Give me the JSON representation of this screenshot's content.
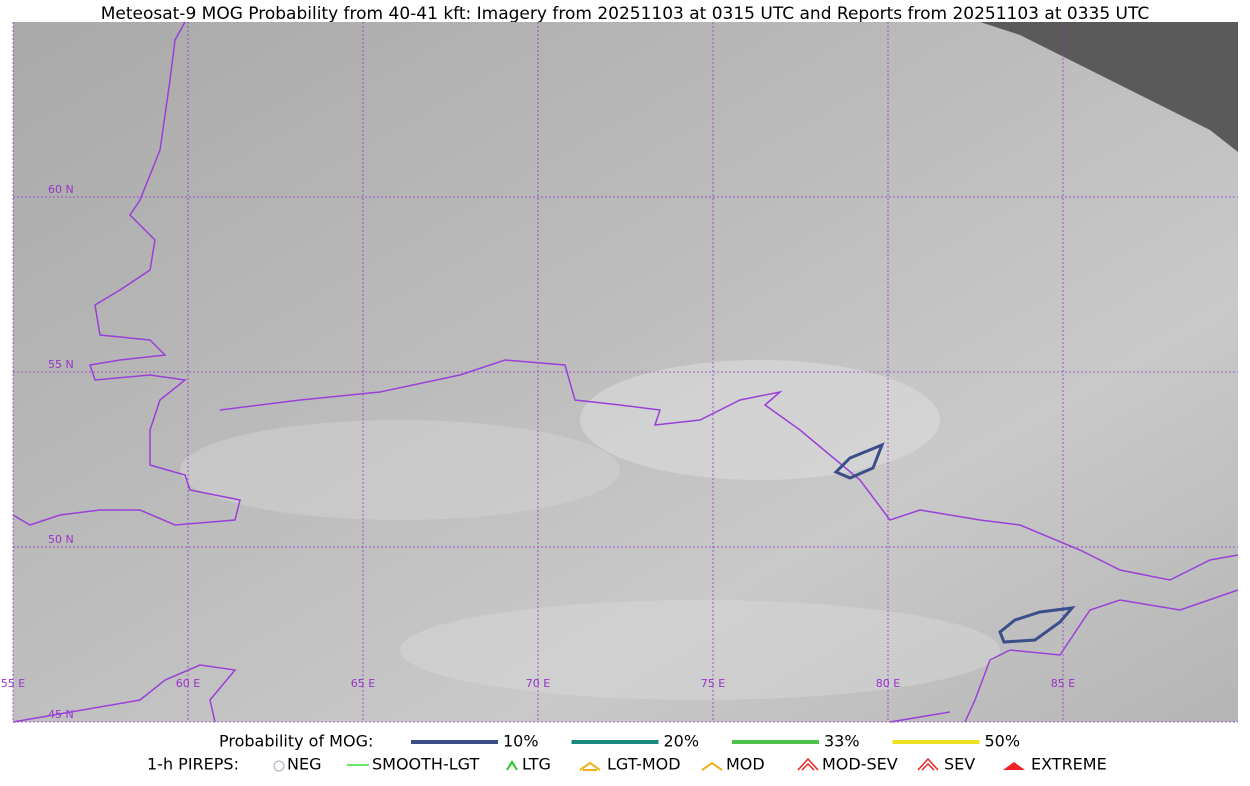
{
  "title": "Meteosat-9 MOG Probability from 40-41 kft: Imagery from 20251103 at 0315 UTC and Reports from 20251103 at 0335 UTC",
  "map": {
    "lon_range": [
      55,
      90
    ],
    "lat_range": [
      45,
      65
    ],
    "lon_ticks": [
      {
        "value": 55,
        "label": "55 E"
      },
      {
        "value": 60,
        "label": "60 E"
      },
      {
        "value": 65,
        "label": "65 E"
      },
      {
        "value": 70,
        "label": "70 E"
      },
      {
        "value": 75,
        "label": "75 E"
      },
      {
        "value": 80,
        "label": "80 E"
      },
      {
        "value": 85,
        "label": "85 E"
      }
    ],
    "lat_ticks": [
      {
        "value": 45,
        "label": "45 N"
      },
      {
        "value": 50,
        "label": "50 N"
      },
      {
        "value": 55,
        "label": "55 N"
      },
      {
        "value": 60,
        "label": "60 N"
      }
    ]
  },
  "legend": {
    "probability_title": "Probability of MOG:",
    "probability": [
      {
        "name": "10%",
        "color": "#3a4f8a"
      },
      {
        "name": "20%",
        "color": "#1a8a80"
      },
      {
        "name": "33%",
        "color": "#4cc44c"
      },
      {
        "name": "50%",
        "color": "#f0e020"
      }
    ],
    "pireps_title": "1-h PIREPS:",
    "pireps": [
      "NEG",
      "SMOOTH-LGT",
      "LTG",
      "LGT-MOD",
      "MOD",
      "MOD-SEV",
      "SEV",
      "EXTREME"
    ]
  }
}
